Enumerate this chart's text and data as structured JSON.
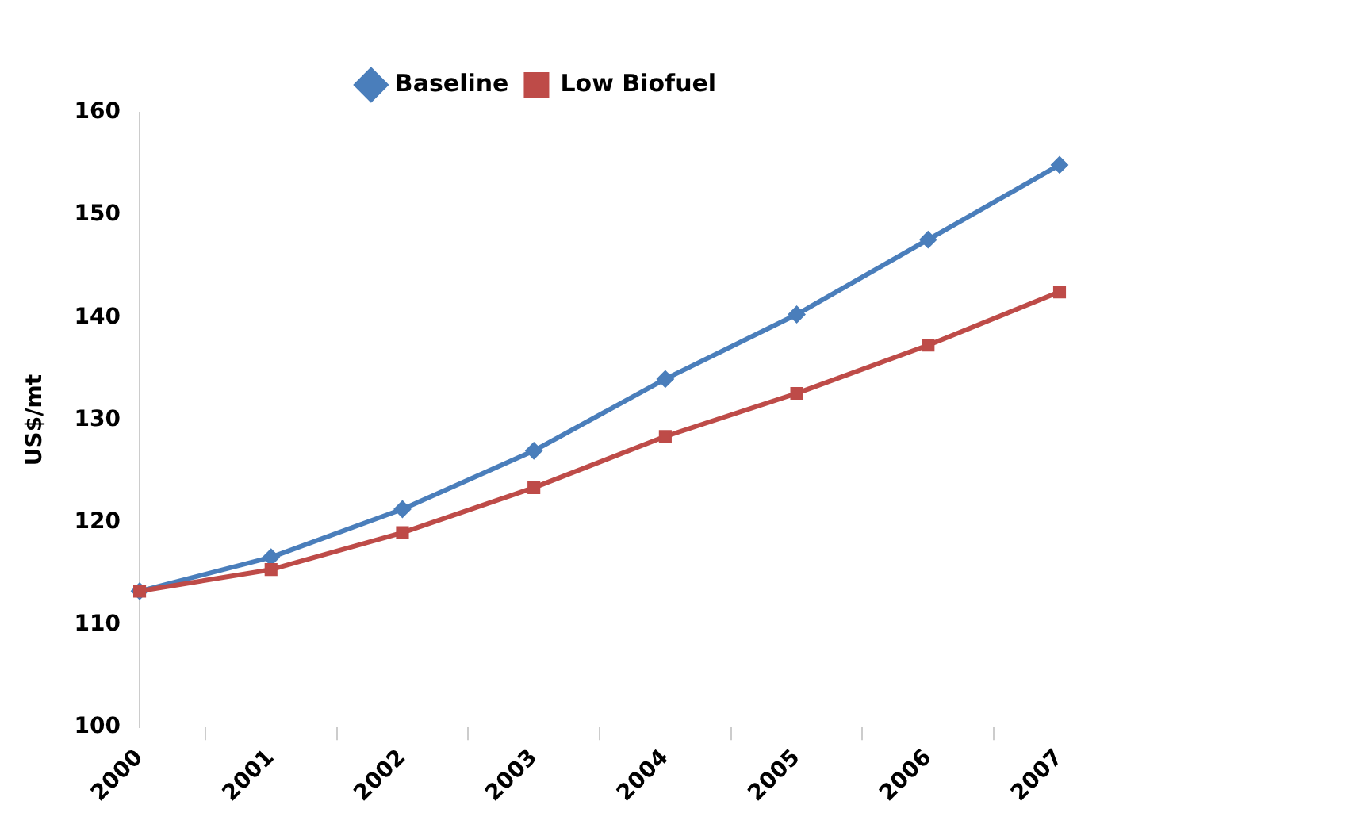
{
  "chart_data": {
    "type": "line",
    "ylabel": "US$/mt",
    "categories": [
      "2000",
      "2001",
      "2002",
      "2003",
      "2004",
      "2005",
      "2006",
      "2007"
    ],
    "series": [
      {
        "name": "Baseline",
        "color": "#4a7ebb",
        "marker": "diamond",
        "values": [
          113.3,
          116.6,
          121.3,
          127.0,
          134.0,
          140.3,
          147.6,
          154.9
        ]
      },
      {
        "name": "Low Biofuel",
        "color": "#be4b48",
        "marker": "square",
        "values": [
          113.3,
          115.4,
          119.0,
          123.4,
          128.4,
          132.6,
          137.3,
          142.5
        ]
      }
    ],
    "ylim": [
      100,
      160
    ],
    "yticks": [
      100,
      110,
      120,
      130,
      140,
      150,
      160
    ],
    "grid": false,
    "legend": "top",
    "line_style": "solid"
  }
}
